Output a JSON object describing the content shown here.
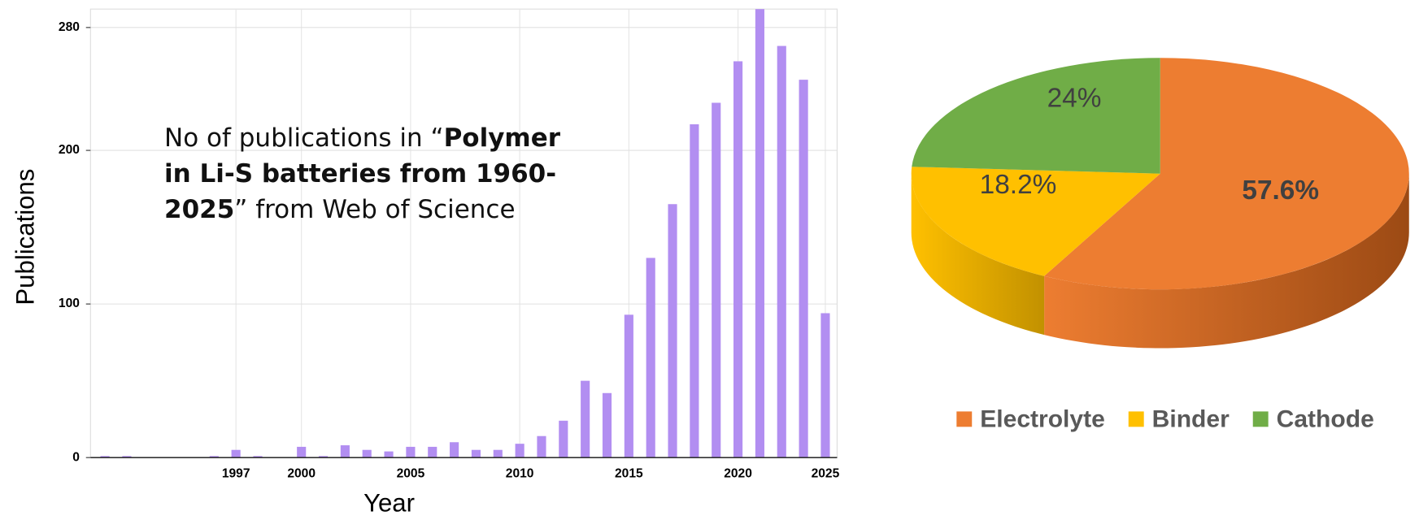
{
  "chart_data": [
    {
      "type": "bar",
      "x_label": "Year",
      "y_label": "Publications",
      "annotation": [
        "No of publications in “",
        "Polymer in Li-S batteries  from 1960-2025",
        "” from Web of Science"
      ],
      "categories": [
        null,
        null,
        null,
        null,
        null,
        null,
        "1997",
        null,
        null,
        "2000",
        null,
        null,
        null,
        null,
        "2005",
        null,
        null,
        null,
        null,
        "2010",
        null,
        null,
        null,
        null,
        "2015",
        null,
        null,
        null,
        null,
        "2020",
        null,
        null,
        null,
        "2025"
      ],
      "values": [
        1,
        1,
        0,
        0,
        0,
        1,
        5,
        1,
        0,
        7,
        1,
        8,
        5,
        4,
        7,
        7,
        10,
        5,
        5,
        9,
        14,
        24,
        50,
        42,
        93,
        130,
        165,
        217,
        231,
        258,
        292,
        268,
        246,
        94
      ],
      "color": "#b28ef1",
      "ylim": [
        0,
        292
      ],
      "yticks": [
        0,
        100,
        200,
        280
      ],
      "grid": true
    },
    {
      "type": "pie",
      "categories": [
        "Electrolyte",
        "Binder",
        "Cathode"
      ],
      "values": [
        57.6,
        18.2,
        24
      ],
      "value_labels": [
        "57.6%",
        "18.2%",
        "24%"
      ],
      "colors": [
        "#ed7d31",
        "#ffc000",
        "#70ad47"
      ],
      "legend": "bottom"
    }
  ]
}
